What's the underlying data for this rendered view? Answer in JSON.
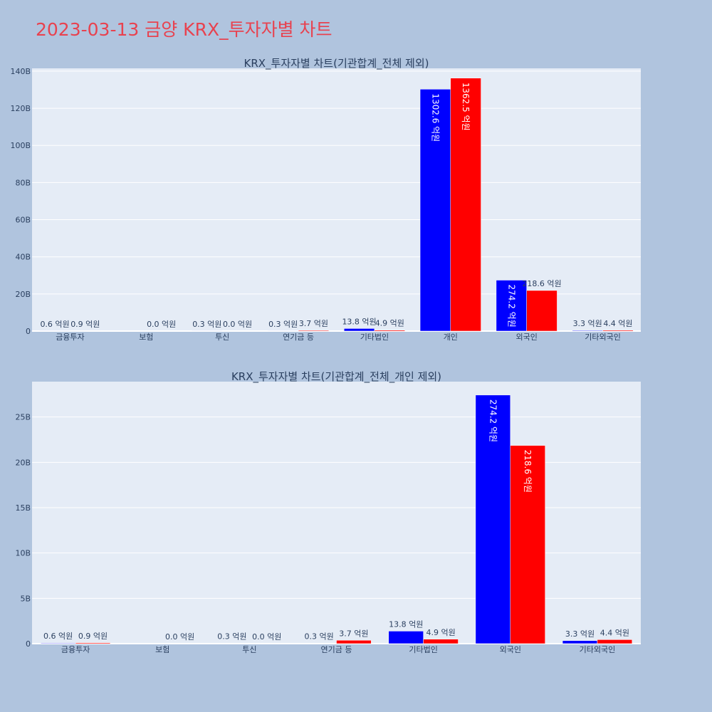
{
  "page_title": "2023-03-13 금양 KRX_투자자별 차트",
  "colors": {
    "buy": "#0000ff",
    "sell": "#ff0000",
    "plot_bg": "#e5ecf6",
    "page_bg": "#b0c4de",
    "title": "#e8424f"
  },
  "chart_data": [
    {
      "type": "bar",
      "title": "KRX_투자자별 차트(기관합계_전체 제외)",
      "categories": [
        "금융투자",
        "보험",
        "투신",
        "연기금 등",
        "기타법인",
        "개인",
        "외국인",
        "기타외국인"
      ],
      "series": [
        {
          "values": [
            0.06,
            0.0,
            0.03,
            0.03,
            1.38,
            130.26,
            27.42,
            0.33
          ],
          "labels": [
            "0.6 억원",
            "",
            "0.3 억원",
            "0.3 억원",
            "13.8 억원",
            "1302.6 억원",
            "274.2 억원",
            "3.3 억원"
          ]
        },
        {
          "values": [
            0.09,
            0.0,
            0.0,
            0.37,
            0.49,
            136.25,
            21.86,
            0.44
          ],
          "labels": [
            "0.9 억원",
            "0.0 억원",
            "0.0 억원",
            "3.7 억원",
            "4.9 억원",
            "1362.5 억원",
            "218.6 억원",
            "4.4 억원"
          ]
        }
      ],
      "yticks": [
        0,
        20,
        40,
        60,
        80,
        100,
        120,
        140
      ],
      "ytick_labels": [
        "0",
        "20B",
        "40B",
        "60B",
        "80B",
        "100B",
        "120B",
        "140B"
      ],
      "ylim": [
        0,
        141.5
      ],
      "grid": true
    },
    {
      "type": "bar",
      "title": "KRX_투자자별 차트(기관합계_전체_개인 제외)",
      "categories": [
        "금융투자",
        "보험",
        "투신",
        "연기금 등",
        "기타법인",
        "외국인",
        "기타외국인"
      ],
      "series": [
        {
          "values": [
            0.06,
            0.0,
            0.03,
            0.03,
            1.38,
            27.42,
            0.33
          ],
          "labels": [
            "0.6 억원",
            "",
            "0.3 억원",
            "0.3 억원",
            "13.8 억원",
            "274.2 억원",
            "3.3 억원"
          ]
        },
        {
          "values": [
            0.09,
            0.0,
            0.0,
            0.37,
            0.49,
            21.86,
            0.44
          ],
          "labels": [
            "0.9 억원",
            "0.0 억원",
            "0.0 억원",
            "3.7 억원",
            "4.9 억원",
            "218.6 억원",
            "4.4 억원"
          ]
        }
      ],
      "yticks": [
        0,
        5,
        10,
        15,
        20,
        25
      ],
      "ytick_labels": [
        "0",
        "5B",
        "10B",
        "15B",
        "20B",
        "25B"
      ],
      "ylim": [
        0,
        28.9
      ],
      "grid": true
    }
  ]
}
